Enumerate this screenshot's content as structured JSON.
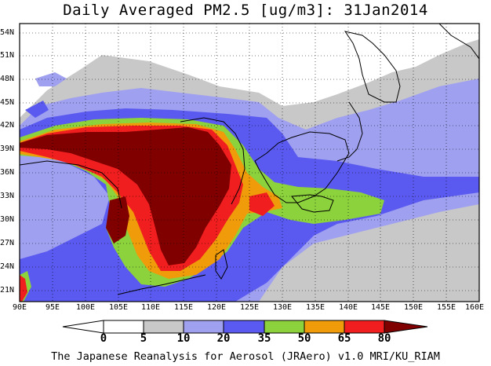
{
  "title": "Daily Averaged PM2.5 [ug/m3]: 31Jan2014",
  "footer": "The Japanese Reanalysis for Aerosol (JRAero) v1.0 MRI/KU_RIAM",
  "lat_labels": [
    "54N",
    "51N",
    "48N",
    "45N",
    "42N",
    "39N",
    "36N",
    "33N",
    "30N",
    "27N",
    "24N",
    "21N"
  ],
  "lon_labels": [
    "90E",
    "95E",
    "100E",
    "105E",
    "110E",
    "115E",
    "120E",
    "125E",
    "130E",
    "135E",
    "140E",
    "145E",
    "150E",
    "155E",
    "160E"
  ],
  "colorbar": {
    "labels": [
      "0",
      "5",
      "10",
      "20",
      "35",
      "50",
      "65",
      "80"
    ],
    "colors": [
      "#ffffff",
      "#c8c8c8",
      "#a0a0f0",
      "#5a5af0",
      "#8cd23c",
      "#f09b0a",
      "#f01e1e",
      "#800000"
    ]
  },
  "map_layers": {
    "ocean_land_bg": "#ffffff",
    "level_5": "#c8c8c8",
    "level_10": "#a0a0f0",
    "level_20": "#5a5af0",
    "level_35": "#8cd23c",
    "level_50": "#f09b0a",
    "level_65": "#f01e1e",
    "level_80": "#800000"
  }
}
